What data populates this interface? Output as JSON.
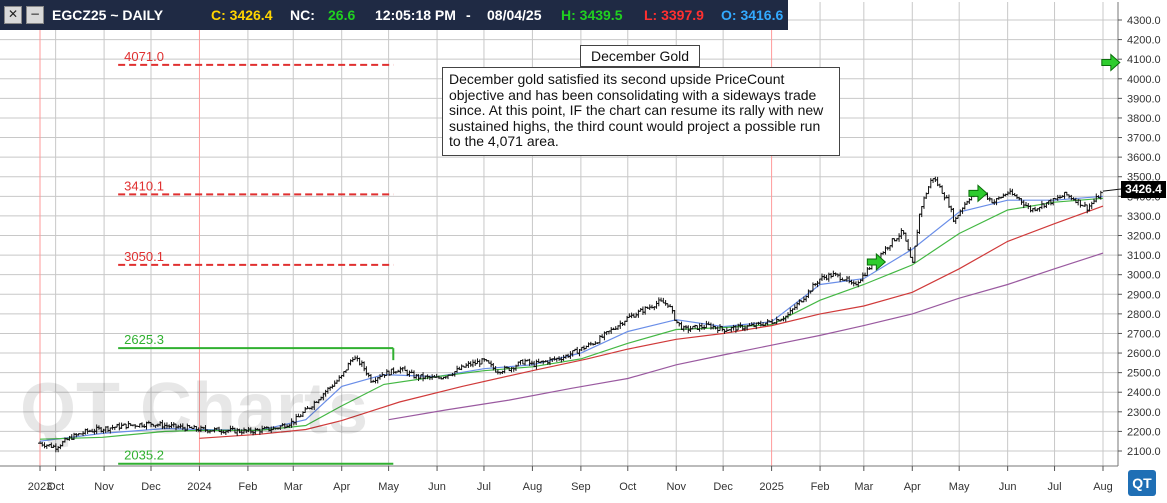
{
  "header": {
    "close_icon": "close-icon",
    "minimize_icon": "minimize-icon",
    "symbol": "EGCZ25 ~ DAILY",
    "close_label": "C: 3426.4",
    "nc_label": "NC:",
    "nc_value": "26.6",
    "time": "12:05:18 PM",
    "sep": "-",
    "date": "08/04/25",
    "high": "H: 3439.5",
    "low": "L: 3397.9",
    "open": "O: 3416.6",
    "colors": {
      "bar": "#1f2a44",
      "close": "#ffd400",
      "nc": "#20d020",
      "high": "#20d020",
      "low": "#ff3030",
      "open": "#33aaff"
    }
  },
  "annotation": {
    "title": "December Gold",
    "text": "December gold satisfied its second upside PriceCount objective and has been consolidating with a sideways trade since.  At this point, IF the chart can resume its rally with new sustained highs, the third count would project a possible run to the 4,071 area."
  },
  "watermark": "QT Charts",
  "logo": "QT",
  "last_price_label": "3426.4",
  "chart_data": {
    "type": "candlestick",
    "title": "",
    "xlabel": "",
    "ylabel": "",
    "ylim": [
      2050,
      4350
    ],
    "y_ticks": [
      2100,
      2200,
      2300,
      2400,
      2500,
      2600,
      2700,
      2800,
      2900,
      3000,
      3100,
      3200,
      3300,
      3400,
      3500,
      3600,
      3700,
      3800,
      3900,
      4000,
      4100,
      4200,
      4300
    ],
    "x_labels": [
      {
        "label": "2023",
        "d": 0,
        "year": true
      },
      {
        "label": "Oct",
        "d": 10
      },
      {
        "label": "Nov",
        "d": 41
      },
      {
        "label": "Dec",
        "d": 71
      },
      {
        "label": "2024",
        "d": 102,
        "year": true
      },
      {
        "label": "Feb",
        "d": 133
      },
      {
        "label": "Mar",
        "d": 162
      },
      {
        "label": "Apr",
        "d": 193
      },
      {
        "label": "May",
        "d": 223
      },
      {
        "label": "Jun",
        "d": 254
      },
      {
        "label": "Jul",
        "d": 284
      },
      {
        "label": "Aug",
        "d": 315
      },
      {
        "label": "Sep",
        "d": 346
      },
      {
        "label": "Oct",
        "d": 376
      },
      {
        "label": "Nov",
        "d": 407
      },
      {
        "label": "Dec",
        "d": 437
      },
      {
        "label": "2025",
        "d": 468,
        "year": true
      },
      {
        "label": "Feb",
        "d": 499
      },
      {
        "label": "Mar",
        "d": 527
      },
      {
        "label": "Apr",
        "d": 558
      },
      {
        "label": "May",
        "d": 588
      },
      {
        "label": "Jun",
        "d": 619
      },
      {
        "label": "Jul",
        "d": 649
      },
      {
        "label": "Aug",
        "d": 680
      }
    ],
    "price_path": [
      [
        0,
        2140
      ],
      [
        10,
        2120
      ],
      [
        20,
        2170
      ],
      [
        30,
        2200
      ],
      [
        41,
        2215
      ],
      [
        55,
        2230
      ],
      [
        71,
        2240
      ],
      [
        85,
        2225
      ],
      [
        102,
        2210
      ],
      [
        120,
        2205
      ],
      [
        133,
        2200
      ],
      [
        150,
        2215
      ],
      [
        162,
        2250
      ],
      [
        172,
        2320
      ],
      [
        182,
        2400
      ],
      [
        193,
        2480
      ],
      [
        200,
        2580
      ],
      [
        206,
        2540
      ],
      [
        212,
        2460
      ],
      [
        218,
        2490
      ],
      [
        223,
        2500
      ],
      [
        230,
        2520
      ],
      [
        240,
        2480
      ],
      [
        254,
        2470
      ],
      [
        264,
        2500
      ],
      [
        274,
        2540
      ],
      [
        284,
        2560
      ],
      [
        292,
        2510
      ],
      [
        300,
        2520
      ],
      [
        310,
        2560
      ],
      [
        315,
        2540
      ],
      [
        325,
        2560
      ],
      [
        335,
        2580
      ],
      [
        346,
        2620
      ],
      [
        356,
        2660
      ],
      [
        366,
        2720
      ],
      [
        376,
        2780
      ],
      [
        386,
        2820
      ],
      [
        396,
        2860
      ],
      [
        402,
        2850
      ],
      [
        407,
        2760
      ],
      [
        412,
        2720
      ],
      [
        420,
        2730
      ],
      [
        428,
        2740
      ],
      [
        437,
        2720
      ],
      [
        447,
        2730
      ],
      [
        457,
        2740
      ],
      [
        468,
        2760
      ],
      [
        478,
        2790
      ],
      [
        488,
        2880
      ],
      [
        499,
        2980
      ],
      [
        507,
        3000
      ],
      [
        515,
        2980
      ],
      [
        520,
        2940
      ],
      [
        527,
        3000
      ],
      [
        535,
        3080
      ],
      [
        545,
        3170
      ],
      [
        552,
        3220
      ],
      [
        556,
        3100
      ],
      [
        558,
        3040
      ],
      [
        563,
        3330
      ],
      [
        567,
        3420
      ],
      [
        571,
        3500
      ],
      [
        576,
        3440
      ],
      [
        581,
        3370
      ],
      [
        585,
        3270
      ],
      [
        588,
        3320
      ],
      [
        594,
        3390
      ],
      [
        601,
        3430
      ],
      [
        610,
        3370
      ],
      [
        619,
        3420
      ],
      [
        626,
        3390
      ],
      [
        634,
        3330
      ],
      [
        642,
        3360
      ],
      [
        649,
        3380
      ],
      [
        656,
        3410
      ],
      [
        663,
        3380
      ],
      [
        670,
        3340
      ],
      [
        676,
        3390
      ],
      [
        680,
        3426.4
      ]
    ],
    "moving_averages": [
      {
        "color": "#6a8ee8",
        "points": [
          [
            0,
            2150
          ],
          [
            40,
            2190
          ],
          [
            80,
            2215
          ],
          [
            102,
            2210
          ],
          [
            140,
            2205
          ],
          [
            170,
            2260
          ],
          [
            193,
            2430
          ],
          [
            220,
            2490
          ],
          [
            254,
            2480
          ],
          [
            284,
            2520
          ],
          [
            315,
            2540
          ],
          [
            346,
            2600
          ],
          [
            376,
            2710
          ],
          [
            407,
            2770
          ],
          [
            437,
            2735
          ],
          [
            468,
            2760
          ],
          [
            499,
            2950
          ],
          [
            527,
            2980
          ],
          [
            558,
            3130
          ],
          [
            588,
            3320
          ],
          [
            619,
            3380
          ],
          [
            649,
            3380
          ],
          [
            680,
            3400
          ]
        ]
      },
      {
        "color": "#44b844",
        "points": [
          [
            0,
            2160
          ],
          [
            40,
            2170
          ],
          [
            80,
            2200
          ],
          [
            102,
            2205
          ],
          [
            140,
            2205
          ],
          [
            170,
            2230
          ],
          [
            193,
            2330
          ],
          [
            220,
            2440
          ],
          [
            254,
            2480
          ],
          [
            284,
            2510
          ],
          [
            315,
            2530
          ],
          [
            346,
            2570
          ],
          [
            376,
            2650
          ],
          [
            407,
            2720
          ],
          [
            437,
            2730
          ],
          [
            468,
            2745
          ],
          [
            499,
            2870
          ],
          [
            527,
            2950
          ],
          [
            558,
            3050
          ],
          [
            588,
            3210
          ],
          [
            619,
            3330
          ],
          [
            649,
            3370
          ],
          [
            680,
            3390
          ]
        ]
      },
      {
        "color": "#d03a3a",
        "points": [
          [
            102,
            2165
          ],
          [
            140,
            2185
          ],
          [
            170,
            2210
          ],
          [
            193,
            2255
          ],
          [
            230,
            2350
          ],
          [
            270,
            2430
          ],
          [
            315,
            2510
          ],
          [
            350,
            2570
          ],
          [
            376,
            2620
          ],
          [
            407,
            2670
          ],
          [
            437,
            2700
          ],
          [
            468,
            2740
          ],
          [
            499,
            2800
          ],
          [
            527,
            2840
          ],
          [
            558,
            2910
          ],
          [
            588,
            3030
          ],
          [
            619,
            3170
          ],
          [
            649,
            3260
          ],
          [
            680,
            3350
          ]
        ]
      },
      {
        "color": "#9a5aa0",
        "points": [
          [
            223,
            2260
          ],
          [
            260,
            2310
          ],
          [
            300,
            2360
          ],
          [
            340,
            2420
          ],
          [
            376,
            2470
          ],
          [
            407,
            2540
          ],
          [
            437,
            2590
          ],
          [
            468,
            2640
          ],
          [
            499,
            2690
          ],
          [
            527,
            2740
          ],
          [
            558,
            2800
          ],
          [
            588,
            2880
          ],
          [
            619,
            2950
          ],
          [
            649,
            3030
          ],
          [
            680,
            3110
          ]
        ]
      }
    ],
    "levels": [
      {
        "label": "4071.0",
        "value": 4071,
        "color": "#e03030",
        "style": "dashed",
        "d0": 50,
        "d1": 226
      },
      {
        "label": "3410.1",
        "value": 3410,
        "color": "#e03030",
        "style": "dashed",
        "d0": 50,
        "d1": 226
      },
      {
        "label": "3050.1",
        "value": 3050,
        "color": "#e03030",
        "style": "dashed",
        "d0": 50,
        "d1": 226
      },
      {
        "label": "2625.3",
        "value": 2625,
        "color": "#30b030",
        "style": "solid",
        "d0": 50,
        "d1": 226
      },
      {
        "label": "2035.2",
        "value": 2035,
        "color": "#30b030",
        "style": "solid",
        "d0": 50,
        "d1": 226
      }
    ],
    "markers": [
      {
        "type": "arrow",
        "color": "#2ecc2e",
        "d": 535,
        "value": 3065
      },
      {
        "type": "arrow",
        "color": "#2ecc2e",
        "d": 600,
        "value": 3415
      },
      {
        "type": "arrow",
        "color": "#2ecc2e",
        "d": 685,
        "value": 4083
      }
    ]
  }
}
